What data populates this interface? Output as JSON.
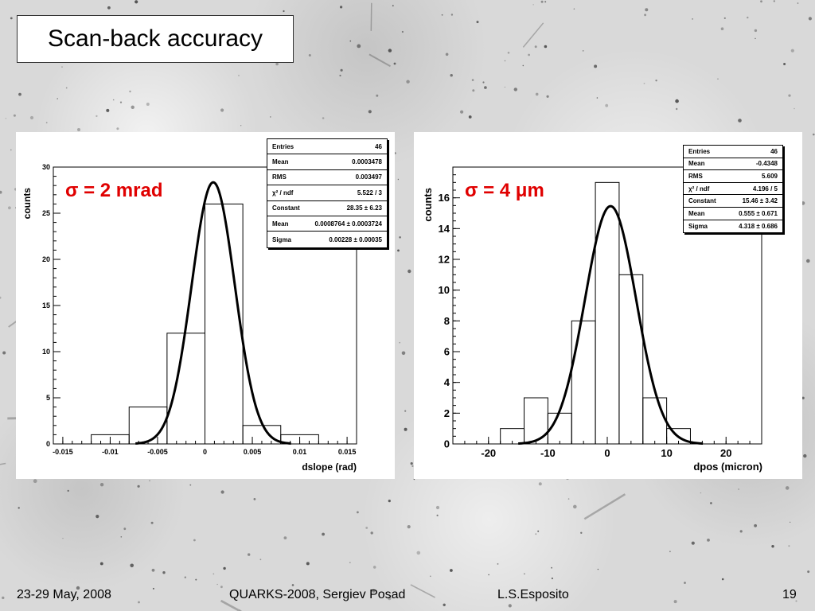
{
  "slide": {
    "title": "Scan-back accuracy",
    "footer_date": "23-29 May, 2008",
    "footer_conference": "QUARKS-2008, Sergiev Posad",
    "footer_author": "L.S.Esposito",
    "page_number": "19"
  },
  "colors": {
    "annotation": "#e00000",
    "curve": "#000000"
  },
  "chart_data": [
    {
      "type": "histogram",
      "annotation": "σ = 2 mrad",
      "xlabel": "dslope (rad)",
      "ylabel": "counts",
      "xlim": [
        -0.016,
        0.016
      ],
      "ylim": [
        0,
        30
      ],
      "x_ticks": [
        "-0.015",
        "-0.01",
        "-0.005",
        "0",
        "0.005",
        "0.01",
        "0.015"
      ],
      "y_ticks": [
        "0",
        "5",
        "10",
        "15",
        "20",
        "25",
        "30"
      ],
      "bins": [
        {
          "x0": -0.012,
          "x1": -0.008,
          "count": 1
        },
        {
          "x0": -0.008,
          "x1": -0.004,
          "count": 4
        },
        {
          "x0": -0.004,
          "x1": 0.0,
          "count": 12
        },
        {
          "x0": 0.0,
          "x1": 0.004,
          "count": 26
        },
        {
          "x0": 0.004,
          "x1": 0.008,
          "count": 2
        },
        {
          "x0": 0.008,
          "x1": 0.012,
          "count": 1
        }
      ],
      "fit": {
        "constant": 28.35,
        "mean": 0.0008764,
        "sigma": 0.00228
      },
      "stats": [
        {
          "label": "Entries",
          "value": "46"
        },
        {
          "label": "Mean",
          "value": "0.0003478"
        },
        {
          "label": "RMS",
          "value": "0.003497"
        },
        {
          "label": "χ² / ndf",
          "value": "5.522 / 3"
        },
        {
          "label": "Constant",
          "value": "28.35 ± 6.23"
        },
        {
          "label": "Mean",
          "value": "0.0008764 ± 0.0003724"
        },
        {
          "label": "Sigma",
          "value": "0.00228 ± 0.00035"
        }
      ]
    },
    {
      "type": "histogram",
      "annotation": "σ = 4 μm",
      "xlabel": "dpos (micron)",
      "ylabel": "counts",
      "xlim": [
        -26,
        26
      ],
      "ylim": [
        0,
        18
      ],
      "x_ticks": [
        "-20",
        "-10",
        "0",
        "10",
        "20"
      ],
      "y_ticks": [
        "0",
        "2",
        "4",
        "6",
        "8",
        "10",
        "12",
        "14",
        "16"
      ],
      "bins": [
        {
          "x0": -18,
          "x1": -14,
          "count": 1
        },
        {
          "x0": -14,
          "x1": -10,
          "count": 3
        },
        {
          "x0": -10,
          "x1": -6,
          "count": 2
        },
        {
          "x0": -6,
          "x1": -2,
          "count": 8
        },
        {
          "x0": -2,
          "x1": 2,
          "count": 17
        },
        {
          "x0": 2,
          "x1": 6,
          "count": 11
        },
        {
          "x0": 6,
          "x1": 10,
          "count": 3
        },
        {
          "x0": 10,
          "x1": 14,
          "count": 1
        }
      ],
      "fit": {
        "constant": 15.46,
        "mean": 0.555,
        "sigma": 4.318
      },
      "stats": [
        {
          "label": "Entries",
          "value": "46"
        },
        {
          "label": "Mean",
          "value": "-0.4348"
        },
        {
          "label": "RMS",
          "value": "5.609"
        },
        {
          "label": "χ² / ndf",
          "value": "4.196 / 5"
        },
        {
          "label": "Constant",
          "value": "15.46 ± 3.42"
        },
        {
          "label": "Mean",
          "value": "0.555 ± 0.671"
        },
        {
          "label": "Sigma",
          "value": "4.318 ± 0.686"
        }
      ]
    }
  ]
}
